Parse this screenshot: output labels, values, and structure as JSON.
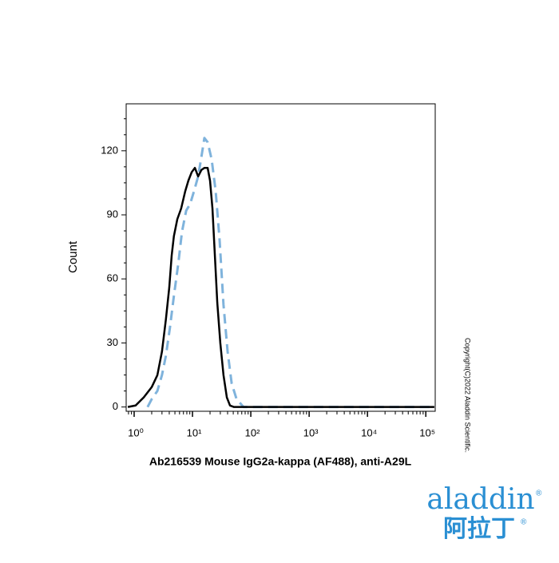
{
  "chart_data": {
    "type": "line",
    "xlabel": "Ab216539 Mouse IgG2a-kappa (AF488), anti-A29L",
    "ylabel": "Count",
    "xscale": "log",
    "xlim": [
      0.73,
      145000
    ],
    "ylim": [
      -2,
      142
    ],
    "xticks": [
      {
        "value": 1,
        "label": "10⁰"
      },
      {
        "value": 10,
        "label": "10¹"
      },
      {
        "value": 100,
        "label": "10²"
      },
      {
        "value": 1000,
        "label": "10³"
      },
      {
        "value": 10000,
        "label": "10⁴"
      },
      {
        "value": 100000,
        "label": "10⁵"
      }
    ],
    "xminorticks": [
      0.8,
      0.9,
      2,
      3,
      4,
      5,
      6,
      7,
      8,
      9,
      20,
      30,
      40,
      50,
      60,
      70,
      80,
      90,
      200,
      300,
      400,
      500,
      600,
      700,
      800,
      900,
      2000,
      3000,
      4000,
      5000,
      6000,
      7000,
      8000,
      9000,
      20000,
      30000,
      40000,
      50000,
      60000,
      70000,
      80000,
      90000
    ],
    "yticks": [
      0,
      30,
      60,
      90,
      120
    ],
    "yminorticks": [
      7.5,
      15,
      22.5,
      37.5,
      45,
      52.5,
      67.5,
      75,
      82.5,
      97.5,
      105,
      112.5,
      127.5,
      135
    ],
    "series": [
      {
        "color": "#000000",
        "dash": "solid",
        "x": [
          0.78,
          1.06,
          1.46,
          2.0,
          2.5,
          3.0,
          3.5,
          4.0,
          4.4,
          4.8,
          5.5,
          6.4,
          7.5,
          8.5,
          9.7,
          11,
          12.5,
          14.2,
          16,
          18.2,
          20,
          22,
          24.2,
          26.6,
          30,
          34,
          38.8,
          44,
          51.5,
          64,
          140000
        ],
        "values": [
          0,
          0.7,
          4.5,
          9.3,
          14.9,
          26,
          41,
          56,
          71,
          80,
          88,
          93,
          101,
          106,
          110,
          112,
          108,
          111,
          112,
          112,
          106,
          93,
          71,
          49,
          30,
          15,
          4.5,
          0.7,
          0,
          0,
          0
        ]
      },
      {
        "color": "#7fb3dc",
        "dash": "dashed",
        "x": [
          1.7,
          2.0,
          2.5,
          3.0,
          3.5,
          4.1,
          4.8,
          5.7,
          6.6,
          7.8,
          9.1,
          10.6,
          12.5,
          14.2,
          16,
          18.2,
          21.3,
          25,
          29.2,
          34,
          40,
          47,
          57,
          75,
          140000
        ],
        "values": [
          0,
          3.7,
          7.5,
          15,
          24,
          37,
          52,
          67,
          82,
          92,
          95,
          101,
          108,
          117,
          126,
          124,
          116,
          101,
          78,
          48,
          26,
          11,
          3.7,
          0,
          0
        ]
      }
    ],
    "copyright": "Copyright(C)2022 Aladdin Scientific.",
    "logo": {
      "name": "aladdin",
      "name_cn": "阿拉丁",
      "mark": "®"
    }
  }
}
